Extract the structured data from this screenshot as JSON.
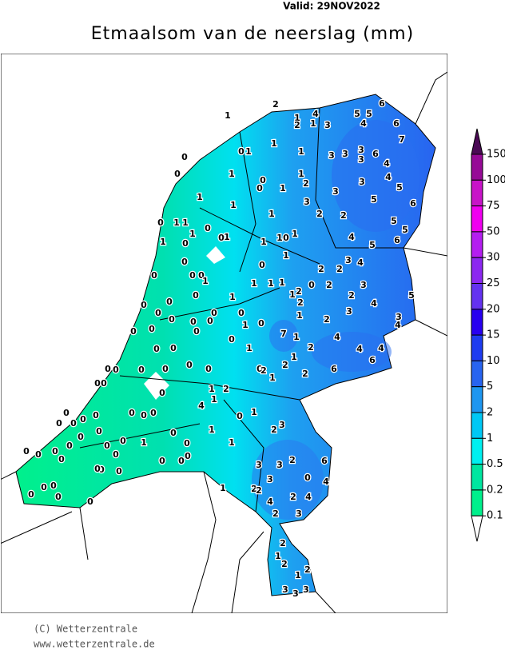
{
  "header": {
    "valid": "Valid:  29NOV2022",
    "title": "Etmaalsom van de neerslag (mm)"
  },
  "legend": {
    "labels": [
      150,
      100,
      75,
      50,
      30,
      25,
      20,
      15,
      10,
      5,
      2,
      1,
      0.5,
      0.2,
      0.1
    ],
    "colors": [
      "#4b0a55",
      "#960a96",
      "#c814c8",
      "#f000f0",
      "#b41ef0",
      "#8c28f0",
      "#6432f0",
      "#2800f0",
      "#1e3cf0",
      "#2864f0",
      "#1e96f0",
      "#00c8f5",
      "#00f0f0",
      "#00e6a0",
      "#00f08c",
      "#ffffff"
    ]
  },
  "stations": [
    2,
    1,
    1,
    4,
    2,
    1,
    3,
    5,
    5,
    6,
    4,
    6,
    7,
    1,
    1,
    0,
    1,
    0,
    0,
    3,
    3,
    3,
    3,
    6,
    4,
    0,
    0,
    1,
    1,
    2,
    1,
    3,
    4,
    5,
    3,
    1,
    1,
    3,
    2,
    2,
    5,
    6,
    1,
    0,
    1,
    1,
    1,
    0,
    0,
    1,
    1,
    0,
    1,
    1,
    0,
    1,
    1,
    5,
    5,
    6,
    4,
    5,
    0,
    0,
    0,
    0,
    0,
    1,
    0,
    0,
    0,
    0,
    0,
    1,
    1,
    1,
    1,
    1,
    2,
    2,
    0,
    2,
    2,
    2,
    3,
    4,
    3,
    2,
    4,
    5,
    3,
    2,
    1,
    0,
    0,
    0,
    0,
    1,
    0,
    3,
    4,
    0,
    0,
    0,
    7,
    1,
    2,
    4,
    0,
    0,
    0,
    1,
    1,
    2,
    4,
    4,
    6,
    0,
    0,
    0,
    0,
    0,
    0,
    0,
    2,
    1,
    2,
    6,
    0,
    0,
    0,
    1,
    2,
    4,
    1,
    0,
    0,
    0,
    0,
    0,
    0,
    0,
    0,
    0,
    1,
    1,
    2,
    3,
    0,
    0,
    0,
    1,
    0,
    0,
    1,
    0,
    0,
    0,
    0,
    0,
    0,
    0,
    0,
    0,
    0,
    0,
    0,
    0,
    3,
    3,
    2,
    6,
    3,
    0,
    4,
    0,
    0,
    0,
    0,
    1,
    2,
    2,
    4,
    2,
    4,
    0,
    2,
    3,
    2,
    1,
    2,
    2,
    1,
    3,
    3,
    3
  ],
  "footer": {
    "lines": [
      "(C) Wetterzentrale",
      "www.wetterzentrale.de"
    ]
  }
}
